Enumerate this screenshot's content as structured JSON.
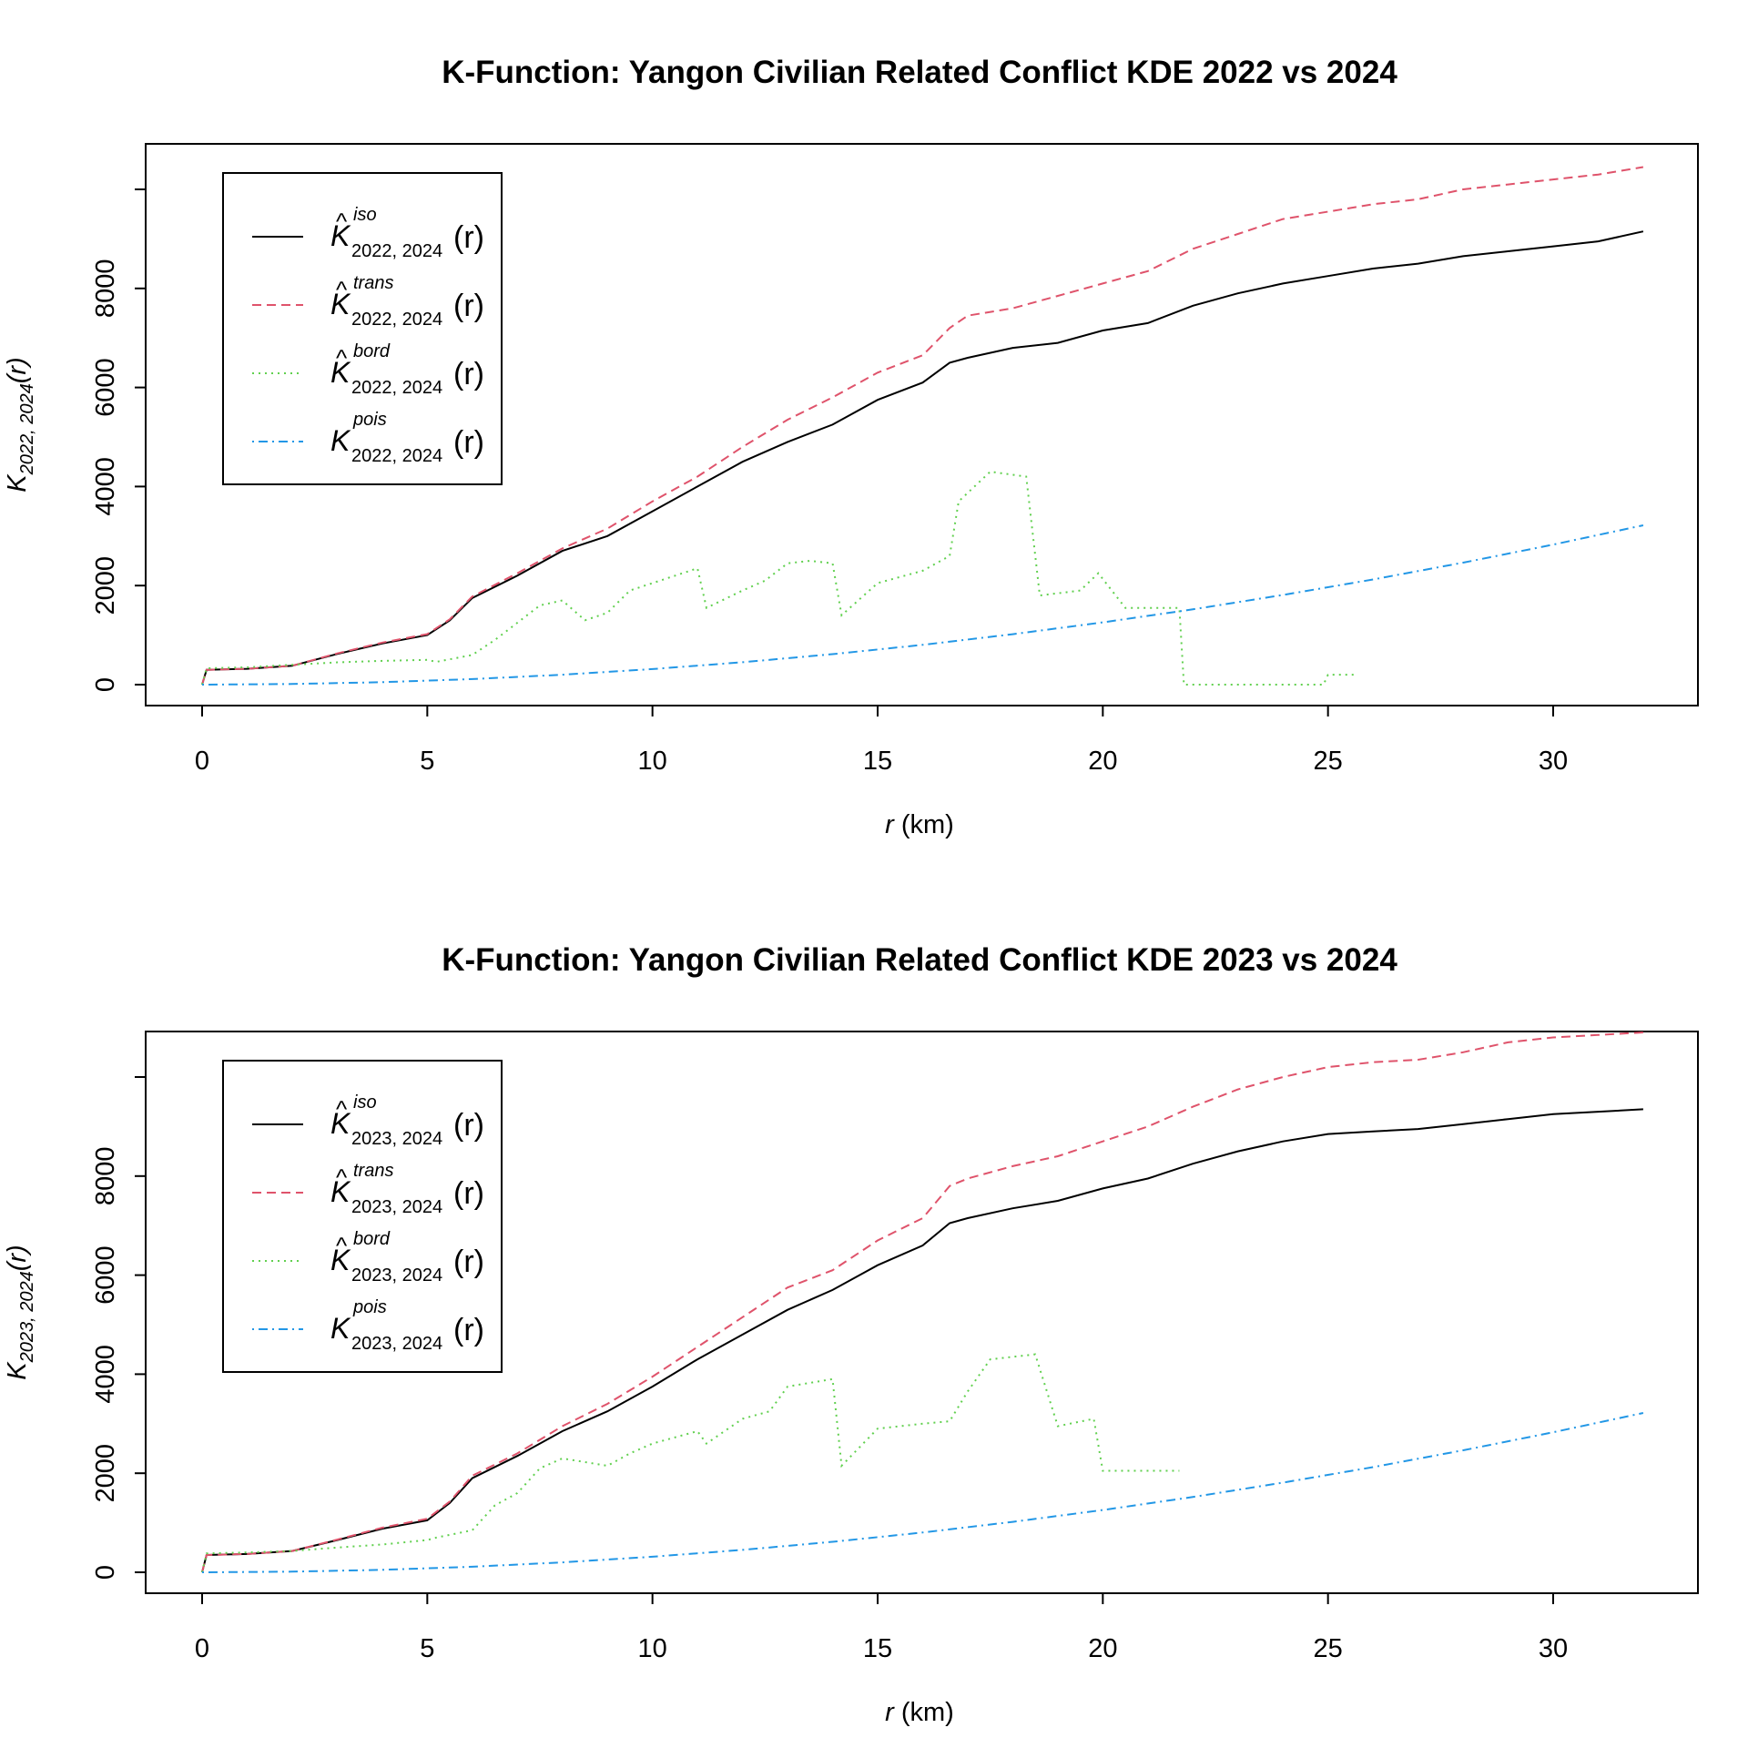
{
  "colors": {
    "iso": "#000000",
    "trans": "#DF536B",
    "bord": "#61D04F",
    "pois": "#2297E6"
  },
  "chart_data": [
    {
      "type": "line",
      "title": "K-Function: Yangon Civilian Related Conflict KDE 2022 vs 2024",
      "xlabel_var": "r",
      "xlabel_unit": "(km)",
      "ylabel_main": "K",
      "ylabel_sub": "2022, 2024",
      "ylabel_arg": "(r)",
      "xlim": [
        0,
        32
      ],
      "ylim": [
        0,
        10000
      ],
      "xticks": [
        "0",
        "5",
        "10",
        "15",
        "20",
        "25",
        "30"
      ],
      "yticks": [
        "0",
        "2000",
        "4000",
        "6000",
        "8000"
      ],
      "legend_position": "top-left",
      "series": [
        {
          "key": "iso",
          "style": "solid",
          "label_main": "K",
          "label_hat": "^",
          "label_sup": "iso",
          "label_sub": "2022, 2024",
          "label_arg": "(r)",
          "x": [
            0,
            0.1,
            1,
            2,
            3,
            4,
            5,
            5.5,
            6,
            7,
            8,
            9,
            10,
            11,
            12,
            13,
            14,
            15,
            16,
            16.6,
            17,
            18,
            19,
            20,
            21,
            22,
            23,
            24,
            25,
            26,
            27,
            28,
            29,
            30,
            31,
            32
          ],
          "y": [
            0,
            300,
            320,
            380,
            620,
            830,
            1000,
            1300,
            1750,
            2200,
            2700,
            3000,
            3500,
            4000,
            4500,
            4900,
            5250,
            5750,
            6100,
            6500,
            6600,
            6800,
            6900,
            7150,
            7300,
            7650,
            7900,
            8100,
            8250,
            8400,
            8500,
            8650,
            8750,
            8850,
            8950,
            9150
          ]
        },
        {
          "key": "trans",
          "style": "dashed",
          "label_main": "K",
          "label_hat": "^",
          "label_sup": "trans",
          "label_sub": "2022, 2024",
          "label_arg": "(r)",
          "x": [
            0,
            0.1,
            1,
            2,
            3,
            4,
            5,
            5.5,
            6,
            7,
            8,
            9,
            10,
            11,
            12,
            13,
            14,
            15,
            16,
            16.6,
            17,
            18,
            19,
            20,
            21,
            22,
            23,
            24,
            25,
            26,
            27,
            28,
            29,
            30,
            31,
            32
          ],
          "y": [
            0,
            300,
            320,
            380,
            630,
            850,
            1020,
            1320,
            1780,
            2250,
            2750,
            3150,
            3700,
            4200,
            4800,
            5350,
            5800,
            6300,
            6650,
            7200,
            7450,
            7600,
            7850,
            8100,
            8350,
            8800,
            9100,
            9400,
            9550,
            9700,
            9800,
            10000,
            10100,
            10200,
            10300,
            10450
          ]
        },
        {
          "key": "bord",
          "style": "dotted",
          "label_main": "K",
          "label_hat": "^",
          "label_sup": "bord",
          "label_sub": "2022, 2024",
          "label_arg": "(r)",
          "x": [
            0,
            0.1,
            1,
            2,
            3,
            4,
            5,
            5.2,
            6,
            6.5,
            7,
            7.5,
            8,
            8.5,
            9,
            9.5,
            10,
            11,
            11.2,
            12,
            12.5,
            13,
            13.5,
            14,
            14.2,
            15,
            16,
            16.6,
            16.8,
            17.5,
            18.3,
            18.6,
            19.5,
            19.9,
            20.5,
            21.7,
            21.8,
            22.5,
            24,
            24.9,
            25,
            25.6
          ],
          "y": [
            0,
            330,
            350,
            400,
            450,
            480,
            500,
            460,
            600,
            900,
            1250,
            1600,
            1700,
            1300,
            1450,
            1900,
            2050,
            2350,
            1550,
            1900,
            2100,
            2450,
            2500,
            2450,
            1400,
            2050,
            2300,
            2600,
            3700,
            4300,
            4200,
            1800,
            1900,
            2250,
            1550,
            1550,
            0,
            0,
            0,
            0,
            200,
            200
          ]
        },
        {
          "key": "pois",
          "style": "dotdash",
          "label_main": "K",
          "label_hat": "",
          "label_sup": "pois",
          "label_sub": "2022, 2024",
          "label_arg": "(r)",
          "x": [
            0,
            2,
            4,
            6,
            8,
            10,
            12,
            14,
            16,
            18,
            20,
            22,
            24,
            26,
            28,
            30,
            32
          ],
          "y": [
            0,
            13,
            50,
            113,
            201,
            314,
            452,
            616,
            804,
            1018,
            1257,
            1521,
            1810,
            2124,
            2463,
            2827,
            3217
          ]
        }
      ]
    },
    {
      "type": "line",
      "title": "K-Function: Yangon Civilian Related Conflict KDE 2023 vs 2024",
      "xlabel_var": "r",
      "xlabel_unit": "(km)",
      "ylabel_main": "K",
      "ylabel_sub": "2023, 2024",
      "ylabel_arg": "(r)",
      "xlim": [
        0,
        32
      ],
      "ylim": [
        0,
        10000
      ],
      "xticks": [
        "0",
        "5",
        "10",
        "15",
        "20",
        "25",
        "30"
      ],
      "yticks": [
        "0",
        "2000",
        "4000",
        "6000",
        "8000"
      ],
      "legend_position": "top-left",
      "series": [
        {
          "key": "iso",
          "style": "solid",
          "label_main": "K",
          "label_hat": "^",
          "label_sup": "iso",
          "label_sub": "2023, 2024",
          "label_arg": "(r)",
          "x": [
            0,
            0.1,
            1,
            2,
            3,
            4,
            5,
            5.5,
            6,
            7,
            8,
            9,
            10,
            11,
            12,
            13,
            14,
            15,
            16,
            16.6,
            17,
            18,
            19,
            20,
            21,
            22,
            23,
            24,
            25,
            26,
            27,
            28,
            29,
            30,
            31,
            32
          ],
          "y": [
            0,
            350,
            370,
            430,
            650,
            880,
            1050,
            1400,
            1900,
            2350,
            2850,
            3250,
            3750,
            4300,
            4800,
            5300,
            5700,
            6200,
            6600,
            7050,
            7150,
            7350,
            7500,
            7750,
            7950,
            8250,
            8500,
            8700,
            8850,
            8900,
            8950,
            9050,
            9150,
            9250,
            9300,
            9350
          ]
        },
        {
          "key": "trans",
          "style": "dashed",
          "label_main": "K",
          "label_hat": "^",
          "label_sup": "trans",
          "label_sub": "2023, 2024",
          "label_arg": "(r)",
          "x": [
            0,
            0.1,
            1,
            2,
            3,
            4,
            5,
            5.5,
            6,
            7,
            8,
            9,
            10,
            11,
            12,
            13,
            14,
            15,
            16,
            16.6,
            17,
            18,
            19,
            20,
            21,
            22,
            23,
            24,
            25,
            26,
            27,
            28,
            29,
            30,
            31,
            32
          ],
          "y": [
            0,
            350,
            370,
            430,
            660,
            900,
            1080,
            1430,
            1950,
            2400,
            2950,
            3400,
            3950,
            4550,
            5150,
            5750,
            6100,
            6700,
            7150,
            7800,
            7950,
            8200,
            8400,
            8700,
            9000,
            9400,
            9750,
            10000,
            10200,
            10300,
            10350,
            10500,
            10700,
            10800,
            10850,
            10900
          ]
        },
        {
          "key": "bord",
          "style": "dotted",
          "label_main": "K",
          "label_hat": "^",
          "label_sup": "bord",
          "label_sub": "2023, 2024",
          "label_arg": "(r)",
          "x": [
            0,
            0.1,
            1,
            2,
            3,
            4,
            5,
            5.2,
            6,
            6.5,
            7,
            7.5,
            8,
            9,
            9.5,
            10,
            11,
            11.2,
            12,
            12.6,
            13,
            14,
            14.2,
            15,
            16,
            16.6,
            17,
            17.5,
            18.5,
            19,
            19.8,
            20,
            21,
            21.7
          ],
          "y": [
            0,
            380,
            400,
            430,
            500,
            560,
            650,
            700,
            850,
            1350,
            1600,
            2100,
            2300,
            2150,
            2400,
            2600,
            2850,
            2600,
            3100,
            3250,
            3750,
            3900,
            2150,
            2900,
            3000,
            3050,
            3650,
            4300,
            4400,
            2950,
            3100,
            2050,
            2050,
            2050
          ]
        },
        {
          "key": "pois",
          "style": "dotdash",
          "label_main": "K",
          "label_hat": "",
          "label_sup": "pois",
          "label_sub": "2023, 2024",
          "label_arg": "(r)",
          "x": [
            0,
            2,
            4,
            6,
            8,
            10,
            12,
            14,
            16,
            18,
            20,
            22,
            24,
            26,
            28,
            30,
            32
          ],
          "y": [
            0,
            13,
            50,
            113,
            201,
            314,
            452,
            616,
            804,
            1018,
            1257,
            1521,
            1810,
            2124,
            2463,
            2827,
            3217
          ]
        }
      ]
    }
  ]
}
